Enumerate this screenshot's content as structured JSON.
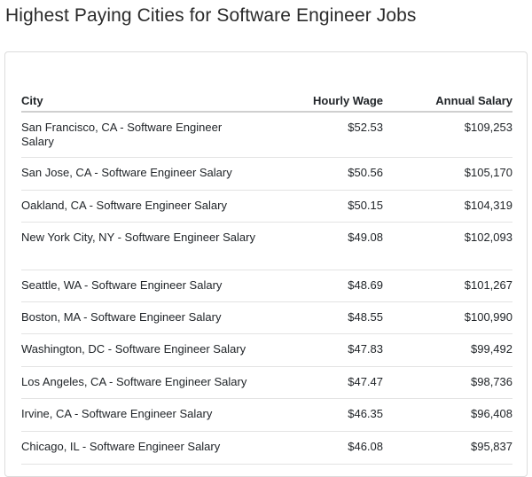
{
  "page": {
    "title": "Highest Paying Cities for Software Engineer Jobs"
  },
  "table": {
    "headers": {
      "city": "City",
      "hourly": "Hourly Wage",
      "annual": "Annual Salary"
    },
    "rows": [
      {
        "city": "San Francisco, CA - Software Engineer Salary",
        "hourly": "$52.53",
        "annual": "$109,253"
      },
      {
        "city": "San Jose, CA - Software Engineer Salary",
        "hourly": "$50.56",
        "annual": "$105,170"
      },
      {
        "city": "Oakland, CA - Software Engineer Salary",
        "hourly": "$50.15",
        "annual": "$104,319"
      },
      {
        "city": "New York City, NY - Software Engineer Salary",
        "hourly": "$49.08",
        "annual": "$102,093"
      },
      {
        "city": "Seattle, WA - Software Engineer Salary",
        "hourly": "$48.69",
        "annual": "$101,267"
      },
      {
        "city": "Boston, MA - Software Engineer Salary",
        "hourly": "$48.55",
        "annual": "$100,990"
      },
      {
        "city": "Washington, DC - Software Engineer Salary",
        "hourly": "$47.83",
        "annual": "$99,492"
      },
      {
        "city": "Los Angeles, CA - Software Engineer Salary",
        "hourly": "$47.47",
        "annual": "$98,736"
      },
      {
        "city": "Irvine, CA - Software Engineer Salary",
        "hourly": "$46.35",
        "annual": "$96,408"
      },
      {
        "city": "Chicago, IL - Software Engineer Salary",
        "hourly": "$46.08",
        "annual": "$95,837"
      }
    ]
  }
}
